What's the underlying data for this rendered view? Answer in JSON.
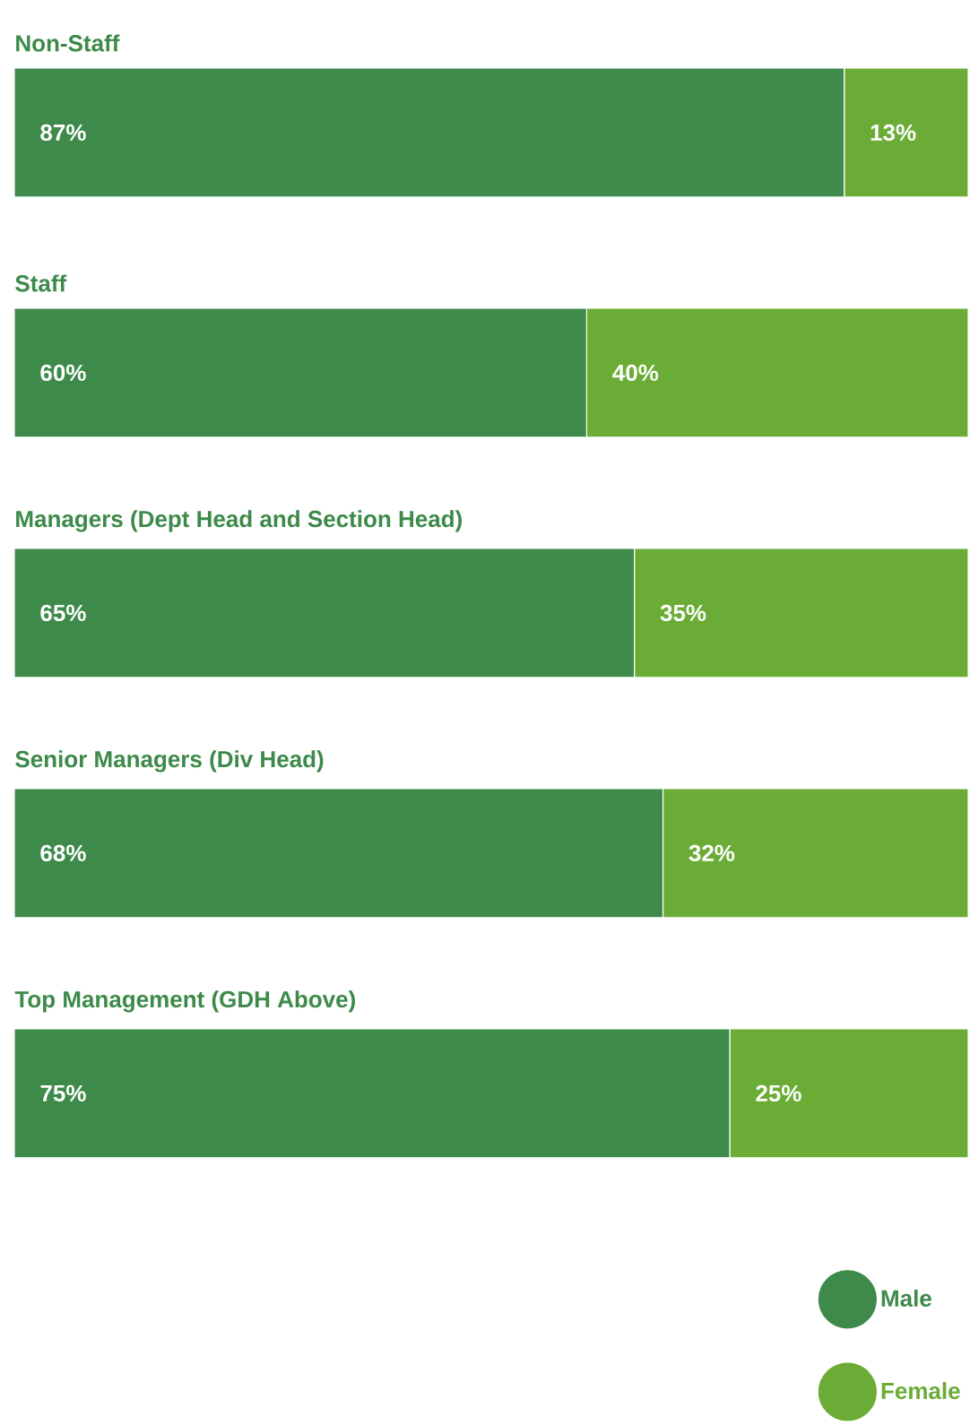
{
  "chart_data": {
    "type": "bar",
    "orientation": "horizontal",
    "stacked": true,
    "categories": [
      "Non-Staff",
      "Staff",
      "Managers (Dept Head and Section Head)",
      "Senior Managers (Div Head)",
      "Top Management (GDH Above)"
    ],
    "series": [
      {
        "name": "Male",
        "color": "#3d8a4a",
        "values": [
          87,
          60,
          65,
          68,
          75
        ],
        "value_labels": [
          "87%",
          "60%",
          "65%",
          "68%",
          "75%"
        ]
      },
      {
        "name": "Female",
        "color": "#6aac35",
        "values": [
          13,
          40,
          35,
          32,
          25
        ],
        "value_labels": [
          "13%",
          "40%",
          "35%",
          "32%",
          "25%"
        ]
      }
    ],
    "legend": "bottom right"
  }
}
